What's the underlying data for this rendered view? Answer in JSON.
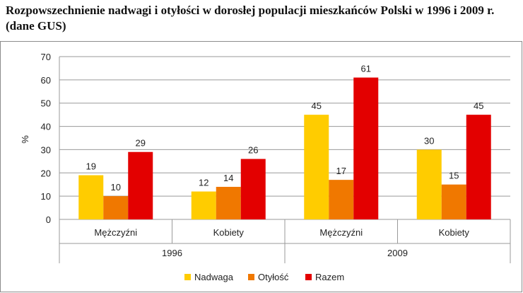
{
  "title": "Rozpowszechnienie nadwagi i otyłości w dorosłej populacji mieszkańców Polski w 1996 i 2009 r. (dane GUS)",
  "chart_data": {
    "type": "bar",
    "title": "Rozpowszechnienie nadwagi i otyłości w dorosłej populacji mieszkańców Polski w 1996 i 2009 r. (dane GUS)",
    "ylabel": "%",
    "ylim": [
      0,
      70
    ],
    "yticks": [
      0,
      10,
      20,
      30,
      40,
      50,
      60,
      70
    ],
    "grid": true,
    "legend_position": "bottom",
    "groups": [
      {
        "label": "1996",
        "categories": [
          "Mężczyźni",
          "Kobiety"
        ]
      },
      {
        "label": "2009",
        "categories": [
          "Mężczyźni",
          "Kobiety"
        ]
      }
    ],
    "categories": [
      "Mężczyźni",
      "Kobiety",
      "Mężczyźni",
      "Kobiety"
    ],
    "series": [
      {
        "name": "Nadwaga",
        "color": "#ffcc00",
        "values": [
          19,
          12,
          45,
          30
        ]
      },
      {
        "name": "Otyłość",
        "color": "#f07800",
        "values": [
          10,
          14,
          17,
          15
        ]
      },
      {
        "name": "Razem",
        "color": "#e30000",
        "values": [
          29,
          26,
          61,
          45
        ]
      }
    ]
  }
}
